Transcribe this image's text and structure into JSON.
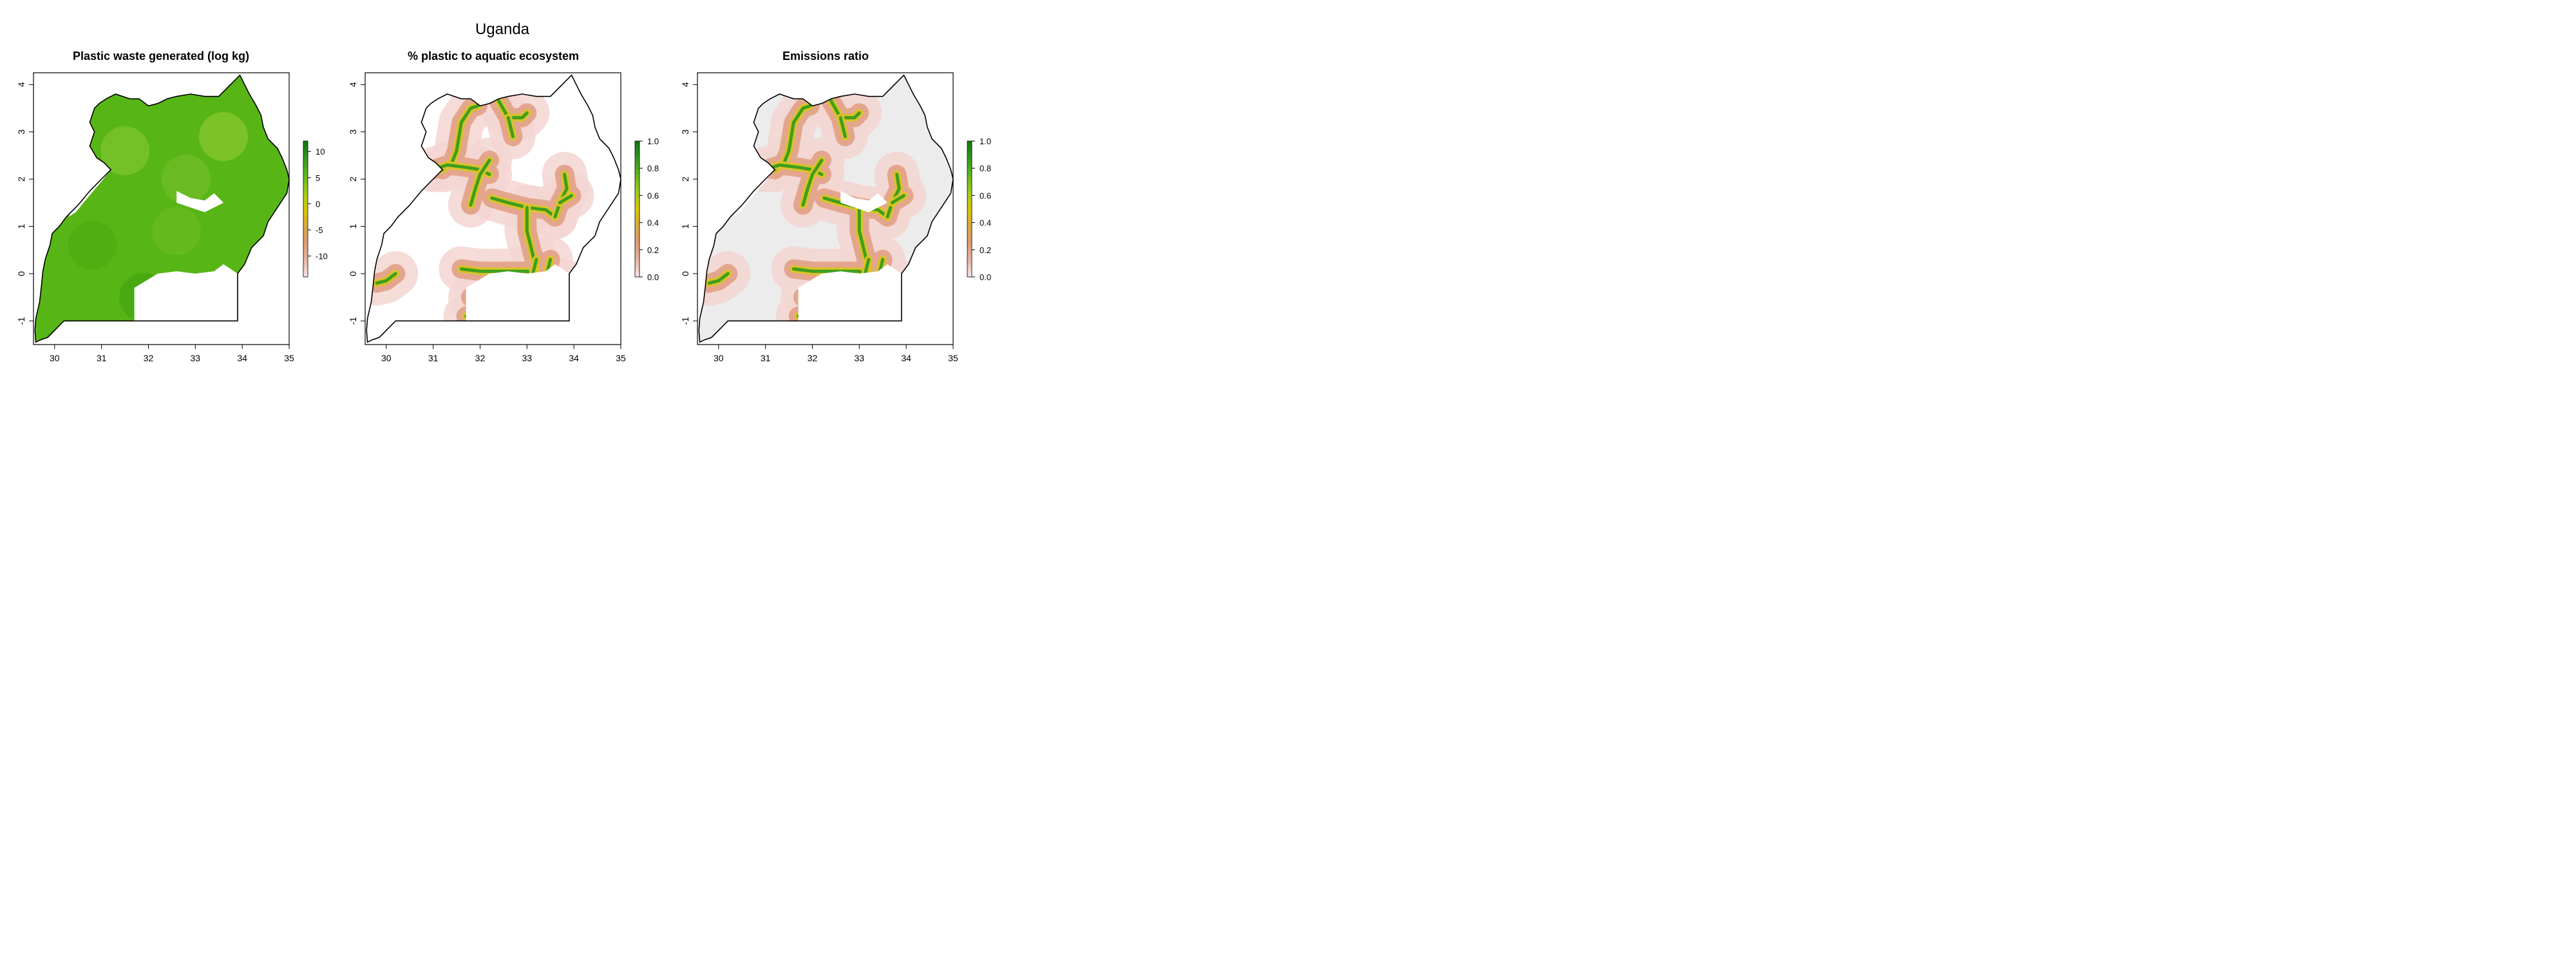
{
  "figure": {
    "title": "Uganda"
  },
  "colors": {
    "ramp": [
      "#f5e6e6",
      "#e8b3a4",
      "#e09a74",
      "#d9aa3f",
      "#d8c800",
      "#9ccc1e",
      "#5eb81a",
      "#2d9a1a",
      "#0d7a0d"
    ],
    "land_gray": "#ececec",
    "outline": "#000000"
  },
  "axes": {
    "x_ticks": [
      "30",
      "31",
      "32",
      "33",
      "34",
      "35"
    ],
    "y_ticks": [
      "-1",
      "0",
      "1",
      "2",
      "3",
      "4"
    ]
  },
  "panels": [
    {
      "title": "Plastic waste generated (log kg)",
      "legend_ticks": [
        "10",
        "5",
        "0",
        "-5",
        "-10"
      ],
      "legend_range": [
        -14,
        12
      ]
    },
    {
      "title": "% plastic to aquatic ecosystem",
      "legend_ticks": [
        "1.0",
        "0.8",
        "0.6",
        "0.4",
        "0.2",
        "0.0"
      ],
      "legend_range": [
        0,
        1
      ]
    },
    {
      "title": "Emissions ratio",
      "legend_ticks": [
        "1.0",
        "0.8",
        "0.6",
        "0.4",
        "0.2",
        "0.0"
      ],
      "legend_range": [
        0,
        1
      ]
    }
  ]
}
